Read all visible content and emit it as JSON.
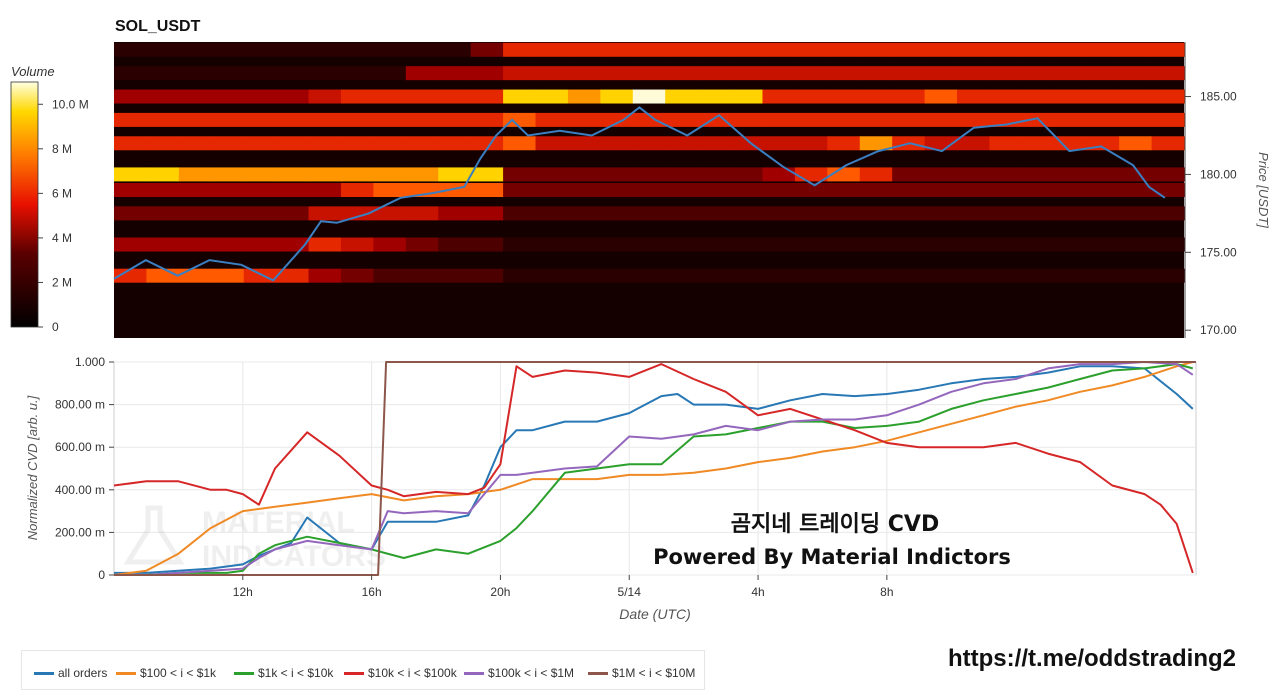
{
  "chart_data": [
    {
      "type": "heatmap",
      "title": "SOL_USDT",
      "ylabel": "Price [USDT]",
      "ylim": [
        169.5,
        188.5
      ],
      "yticks": [
        "185.00",
        "180.00",
        "175.00",
        "170.00"
      ],
      "colorbar": {
        "label": "Volume",
        "ticks": [
          "10.0 M",
          "8 M",
          "6 M",
          "4 M",
          "2 M",
          "0"
        ],
        "range": [
          0,
          11
        ]
      },
      "price_line": {
        "color": "#3a7fc1",
        "x_hours": [
          0,
          1,
          2,
          3,
          4,
          5,
          6,
          6.5,
          7,
          8,
          9,
          10,
          11,
          11.5,
          12,
          12.5,
          13,
          14,
          15,
          16,
          16.5,
          17,
          18,
          19,
          20,
          21,
          22,
          23,
          24,
          25,
          26,
          27,
          28,
          29,
          30,
          31,
          32,
          32.5,
          33
        ],
        "values": [
          173.3,
          174.5,
          173.5,
          174.5,
          174.2,
          173.2,
          175.5,
          177,
          176.9,
          177.5,
          178.5,
          178.8,
          179.2,
          181,
          182.5,
          183.5,
          182.5,
          182.8,
          182.5,
          183.5,
          184.3,
          183.5,
          182.5,
          183.8,
          182,
          180.5,
          179.3,
          180.6,
          181.5,
          182,
          181.5,
          183,
          183.2,
          183.6,
          181.5,
          181.8,
          180.6,
          179.2,
          178.5
        ]
      },
      "bands": [
        {
          "price": 173.5,
          "intensity": [
            6,
            7,
            7,
            7,
            6,
            6,
            4,
            3,
            2,
            2,
            2,
            2,
            1,
            1,
            1,
            1,
            1,
            1,
            1,
            1,
            1,
            1,
            1,
            1,
            1,
            1,
            1,
            1,
            1,
            1,
            1,
            1,
            1
          ]
        },
        {
          "price": 175.5,
          "intensity": [
            4,
            4,
            4,
            4,
            4,
            4,
            6,
            5,
            4,
            3,
            2,
            2,
            1,
            1,
            1,
            1,
            1,
            1,
            1,
            1,
            1,
            1,
            1,
            1,
            1,
            1,
            1,
            1,
            1,
            1,
            1,
            1,
            1
          ]
        },
        {
          "price": 177.5,
          "intensity": [
            3,
            3,
            3,
            3,
            3,
            3,
            5,
            5,
            5,
            5,
            4,
            4,
            2,
            2,
            2,
            2,
            2,
            2,
            2,
            2,
            2,
            2,
            2,
            2,
            2,
            2,
            2,
            2,
            2,
            2,
            2,
            2,
            2
          ]
        },
        {
          "price": 179.0,
          "intensity": [
            4,
            4,
            4,
            4,
            4,
            4,
            4,
            6,
            7,
            7,
            7,
            7,
            3,
            3,
            3,
            3,
            3,
            3,
            3,
            3,
            3,
            3,
            3,
            3,
            3,
            3,
            3,
            3,
            3,
            3,
            3,
            3,
            3
          ]
        },
        {
          "price": 180.0,
          "intensity": [
            9,
            9,
            8,
            8,
            8,
            8,
            8,
            8,
            8,
            8,
            9,
            9,
            3,
            3,
            3,
            3,
            3,
            3,
            3,
            3,
            4,
            6,
            7,
            6,
            3,
            3,
            3,
            3,
            3,
            3,
            3,
            3,
            3
          ]
        },
        {
          "price": 182.0,
          "intensity": [
            6,
            6,
            6,
            6,
            6,
            6,
            6,
            6,
            6,
            6,
            6,
            6,
            7,
            5,
            5,
            5,
            5,
            5,
            5,
            5,
            5,
            5,
            6,
            8,
            6,
            5,
            5,
            6,
            6,
            6,
            6,
            7,
            6
          ]
        },
        {
          "price": 183.5,
          "intensity": [
            6,
            6,
            6,
            6,
            6,
            6,
            6,
            6,
            6,
            6,
            6,
            6,
            7,
            6,
            6,
            6,
            6,
            6,
            6,
            6,
            6,
            6,
            6,
            6,
            6,
            6,
            6,
            6,
            6,
            6,
            6,
            6,
            6
          ]
        },
        {
          "price": 185.0,
          "intensity": [
            4,
            4,
            4,
            4,
            4,
            4,
            5,
            6,
            6,
            6,
            6,
            6,
            9,
            9,
            8,
            9,
            10,
            9,
            9,
            9,
            6,
            6,
            6,
            6,
            6,
            7,
            6,
            6,
            6,
            6,
            6,
            6,
            6
          ]
        },
        {
          "price": 186.5,
          "intensity": [
            1,
            1,
            1,
            1,
            1,
            1,
            1,
            1,
            1,
            4,
            4,
            4,
            5,
            5,
            5,
            5,
            5,
            5,
            5,
            5,
            5,
            5,
            5,
            5,
            5,
            5,
            5,
            5,
            5,
            5,
            5,
            5,
            5
          ]
        },
        {
          "price": 188.0,
          "intensity": [
            1,
            1,
            1,
            1,
            1,
            1,
            1,
            1,
            1,
            1,
            1,
            3,
            6,
            6,
            6,
            6,
            6,
            6,
            6,
            6,
            6,
            6,
            6,
            6,
            6,
            6,
            6,
            6,
            6,
            6,
            6,
            6,
            6
          ]
        }
      ]
    },
    {
      "type": "line",
      "xlabel": "Date (UTC)",
      "ylabel": "Normalized CVD [arb. u.]",
      "ylim": [
        0,
        1
      ],
      "yticks": [
        "1.000",
        "800.00 m",
        "600.00 m",
        "400.00 m",
        "200.00 m",
        "0"
      ],
      "xticks": [
        "12h",
        "16h",
        "20h",
        "5/14",
        "4h",
        "8h"
      ],
      "x_range_hours": [
        0,
        33.6
      ],
      "xtick_hours": [
        4,
        8,
        12,
        16,
        20,
        24
      ],
      "series": [
        {
          "name": "all orders",
          "color": "#2878b5",
          "x": [
            0,
            1,
            2,
            3,
            4,
            4.5,
            5,
            5.5,
            6,
            7,
            8,
            8.5,
            9,
            10,
            11,
            11.5,
            12,
            12.5,
            13,
            14,
            15,
            16,
            17,
            17.5,
            18,
            19,
            20,
            21,
            22,
            23,
            24,
            25,
            26,
            27,
            28,
            29,
            30,
            31,
            32,
            33,
            33.5
          ],
          "y": [
            0.01,
            0.01,
            0.02,
            0.03,
            0.05,
            0.09,
            0.12,
            0.15,
            0.27,
            0.15,
            0.12,
            0.25,
            0.25,
            0.25,
            0.28,
            0.42,
            0.6,
            0.68,
            0.68,
            0.72,
            0.72,
            0.76,
            0.84,
            0.85,
            0.8,
            0.8,
            0.78,
            0.82,
            0.85,
            0.84,
            0.85,
            0.87,
            0.9,
            0.92,
            0.93,
            0.95,
            0.98,
            0.98,
            0.97,
            0.85,
            0.78
          ]
        },
        {
          "name": "$100 < i < $1k",
          "color": "#f08a24",
          "x": [
            0,
            1,
            2,
            3,
            4,
            5,
            6,
            7,
            8,
            9,
            10,
            11,
            12,
            13,
            14,
            15,
            16,
            17,
            18,
            19,
            20,
            21,
            22,
            23,
            24,
            25,
            26,
            27,
            28,
            29,
            30,
            31,
            32,
            33,
            33.5
          ],
          "y": [
            0.0,
            0.02,
            0.1,
            0.22,
            0.3,
            0.32,
            0.34,
            0.36,
            0.38,
            0.35,
            0.37,
            0.38,
            0.4,
            0.45,
            0.45,
            0.45,
            0.47,
            0.47,
            0.48,
            0.5,
            0.53,
            0.55,
            0.58,
            0.6,
            0.63,
            0.67,
            0.71,
            0.75,
            0.79,
            0.82,
            0.86,
            0.89,
            0.93,
            0.98,
            1.0
          ]
        },
        {
          "name": "$1k < i < $10k",
          "color": "#2ca02c",
          "x": [
            0,
            1,
            2,
            3,
            3.5,
            4,
            4.5,
            5,
            6,
            7,
            8,
            9,
            10,
            11,
            12,
            12.5,
            13,
            14,
            15,
            16,
            17,
            18,
            19,
            20,
            21,
            22,
            23,
            24,
            25,
            26,
            27,
            28,
            29,
            30,
            31,
            32,
            33,
            33.5
          ],
          "y": [
            0.0,
            0.0,
            0.01,
            0.01,
            0.01,
            0.02,
            0.1,
            0.14,
            0.18,
            0.15,
            0.12,
            0.08,
            0.12,
            0.1,
            0.16,
            0.22,
            0.3,
            0.48,
            0.5,
            0.52,
            0.52,
            0.65,
            0.66,
            0.69,
            0.72,
            0.72,
            0.69,
            0.7,
            0.72,
            0.78,
            0.82,
            0.85,
            0.88,
            0.92,
            0.96,
            0.97,
            0.99,
            0.97
          ]
        },
        {
          "name": "$10k < i < $100k",
          "color": "#d62728",
          "x": [
            0,
            1,
            2,
            3,
            3.5,
            4,
            4.5,
            5,
            6,
            7,
            8,
            8.5,
            9,
            10,
            11,
            11.5,
            12,
            12.5,
            13,
            14,
            15,
            16,
            17,
            18,
            19,
            20,
            21,
            22,
            23,
            24,
            25,
            26,
            27,
            28,
            29,
            30,
            31,
            32,
            32.5,
            33,
            33.5
          ],
          "y": [
            0.42,
            0.44,
            0.44,
            0.4,
            0.4,
            0.38,
            0.33,
            0.5,
            0.67,
            0.56,
            0.42,
            0.4,
            0.37,
            0.39,
            0.38,
            0.41,
            0.52,
            0.98,
            0.93,
            0.96,
            0.95,
            0.93,
            0.99,
            0.92,
            0.86,
            0.75,
            0.78,
            0.73,
            0.68,
            0.62,
            0.6,
            0.6,
            0.6,
            0.62,
            0.57,
            0.53,
            0.42,
            0.38,
            0.33,
            0.24,
            0.01
          ]
        },
        {
          "name": "$100k < i < $1M",
          "color": "#9467bd",
          "x": [
            0,
            1,
            2,
            3,
            4,
            4.5,
            5,
            6,
            7,
            8,
            8.5,
            9,
            10,
            11,
            12,
            12.5,
            13,
            14,
            15,
            16,
            17,
            18,
            19,
            20,
            21,
            22,
            23,
            24,
            25,
            26,
            27,
            28,
            29,
            30,
            31,
            32,
            33,
            33.5
          ],
          "y": [
            0.0,
            0.0,
            0.01,
            0.02,
            0.03,
            0.08,
            0.12,
            0.16,
            0.14,
            0.12,
            0.3,
            0.29,
            0.3,
            0.29,
            0.47,
            0.47,
            0.48,
            0.5,
            0.51,
            0.65,
            0.64,
            0.66,
            0.7,
            0.68,
            0.72,
            0.73,
            0.73,
            0.75,
            0.8,
            0.86,
            0.9,
            0.92,
            0.97,
            0.99,
            0.99,
            1.0,
            0.99,
            0.94
          ]
        },
        {
          "name": "$1M < i < $10M",
          "color": "#8c564b",
          "x": [
            0,
            8.2,
            8.45,
            8.7,
            33.6
          ],
          "y": [
            0.0,
            0.0,
            1.0,
            1.0,
            1.0
          ]
        }
      ],
      "annotations": [
        "곰지네 트레이딩 CVD",
        "Powered By Material Indictors"
      ],
      "watermark": [
        "MATERIAL",
        "INDICATORS"
      ]
    }
  ],
  "footer": {
    "link": "https://t.me/oddstrading2"
  }
}
